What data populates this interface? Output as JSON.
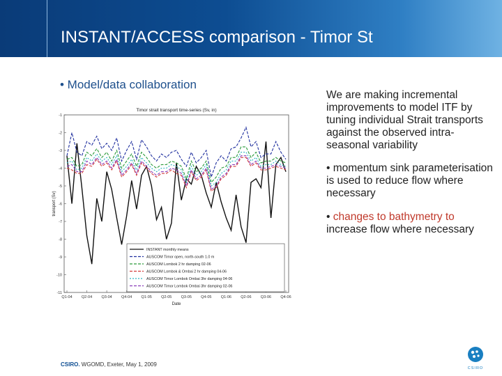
{
  "header": {
    "title": "INSTANT/ACCESS comparison - Timor St"
  },
  "main": {
    "bullet": "• Model/data collaboration",
    "paragraph1": "We are making incremental improvements to model ITF by tuning individual Strait transports against the observed intra-seasonal variability",
    "paragraph2": "• momentum sink parameterisation is used to reduce flow where necessary",
    "paragraph3_bullet": "• ",
    "paragraph3_accent": "changes to bathymetry to",
    "paragraph3_rest": "increase flow where necessary"
  },
  "footer": {
    "brand": "CSIRO.",
    "text": " WGOMD, Exeter, May 1, 2009"
  },
  "logo": {
    "icon": "csiro-logo-icon",
    "text": "CSIRO",
    "color": "#1a7fc1"
  },
  "chart_data": {
    "type": "line",
    "title": "Timor strait transport time-series (Sv, in)",
    "xlabel": "Date",
    "ylabel": "transport (Sv)",
    "ylim": [
      -11,
      -1
    ],
    "yticks": [
      -1,
      -2,
      -3,
      -4,
      -5,
      -6,
      -7,
      -8,
      -9,
      -10,
      -11
    ],
    "xticks": [
      "Q1-04",
      "Q2-04",
      "Q3-04",
      "Q4-04",
      "Q1-05",
      "Q2-05",
      "Q3-05",
      "Q4-05",
      "Q1-06",
      "Q2-06",
      "Q3-06",
      "Q4-06"
    ],
    "grid": false,
    "legend_placement": "bottom-right",
    "series": [
      {
        "name": "INSTANT monthly means",
        "color": "#111111",
        "dash": "",
        "values": [
          -3.3,
          -6.0,
          -2.6,
          -5.1,
          -7.8,
          -9.4,
          -5.7,
          -7.0,
          -4.2,
          -5.2,
          -6.8,
          -8.3,
          -6.7,
          -4.7,
          -6.3,
          -4.4,
          -3.9,
          -5.0,
          -6.9,
          -6.2,
          -8.0,
          -7.1,
          -3.7,
          -5.8,
          -4.6,
          -4.9,
          -3.9,
          -4.4,
          -5.4,
          -6.2,
          -4.8,
          -5.9,
          -6.8,
          -7.5,
          -5.5,
          -7.3,
          -8.2,
          -4.8,
          -4.6,
          -5.1,
          -2.5,
          -6.8,
          -3.8,
          -3.4,
          -4.2
        ]
      },
      {
        "name": "AUSCOM Timor open, north-south 1.0 m",
        "color": "#1f2f9e",
        "dash": "4,2",
        "values": [
          -3.3,
          -2.0,
          -3.1,
          -3.3,
          -2.5,
          -2.7,
          -2.2,
          -2.9,
          -2.6,
          -3.0,
          -2.3,
          -3.6,
          -3.0,
          -2.5,
          -3.5,
          -2.4,
          -2.8,
          -3.3,
          -3.6,
          -3.2,
          -3.4,
          -3.1,
          -3.0,
          -3.5,
          -3.9,
          -3.1,
          -3.7,
          -3.4,
          -3.0,
          -4.5,
          -3.7,
          -3.3,
          -3.6,
          -2.9,
          -2.8,
          -2.3,
          -1.7,
          -2.8,
          -2.5,
          -3.4,
          -3.2,
          -3.2,
          -2.5,
          -3.1,
          -3.5
        ]
      },
      {
        "name": "AUSCOM Lombok 2 hr damping 02-06",
        "color": "#2a9a3a",
        "dash": "4,2",
        "values": [
          -3.5,
          -3.4,
          -3.9,
          -3.8,
          -3.1,
          -3.3,
          -2.9,
          -3.4,
          -3.1,
          -3.6,
          -3.0,
          -4.0,
          -3.6,
          -3.2,
          -3.9,
          -3.1,
          -3.4,
          -3.8,
          -4.0,
          -3.8,
          -3.8,
          -3.6,
          -3.7,
          -3.9,
          -4.6,
          -3.6,
          -4.2,
          -4.0,
          -3.6,
          -4.8,
          -4.5,
          -4.0,
          -3.9,
          -3.4,
          -3.4,
          -2.8,
          -2.8,
          -3.4,
          -3.1,
          -3.7,
          -3.6,
          -3.6,
          -3.4,
          -3.6,
          -3.7
        ]
      },
      {
        "name": "AUSCOM Lombok & Ombai 2 hr damping 04-06",
        "color": "#d23a3a",
        "dash": "4,2",
        "values": [
          -4.0,
          -4.1,
          -4.3,
          -4.3,
          -3.8,
          -3.9,
          -3.5,
          -3.9,
          -3.7,
          -4.1,
          -3.6,
          -4.5,
          -4.2,
          -3.8,
          -4.4,
          -3.7,
          -4.0,
          -4.3,
          -4.5,
          -4.3,
          -4.3,
          -4.1,
          -4.3,
          -4.4,
          -5.1,
          -4.2,
          -4.7,
          -4.5,
          -4.1,
          -5.3,
          -5.1,
          -4.6,
          -4.4,
          -3.9,
          -3.9,
          -3.4,
          -3.4,
          -3.9,
          -3.7,
          -4.1,
          -4.1,
          -4.0,
          -3.9,
          -4.0,
          -4.1
        ]
      },
      {
        "name": "AUSCOM Timor Lombok Ombai 3hr damping 04-06",
        "color": "#2bb3c0",
        "dash": "2,2",
        "values": [
          -3.7,
          -3.6,
          -4.1,
          -4.0,
          -3.4,
          -3.6,
          -3.2,
          -3.6,
          -3.4,
          -3.8,
          -3.3,
          -4.2,
          -3.9,
          -3.5,
          -4.1,
          -3.4,
          -3.7,
          -4.0,
          -4.2,
          -4.0,
          -4.0,
          -3.8,
          -3.9,
          -4.1,
          -4.8,
          -3.9,
          -4.4,
          -4.2,
          -3.8,
          -5.0,
          -4.8,
          -4.3,
          -4.1,
          -3.6,
          -3.6,
          -3.1,
          -3.1,
          -3.6,
          -3.4,
          -3.9,
          -3.8,
          -3.8,
          -3.6,
          -3.8,
          -3.9
        ]
      },
      {
        "name": "AUSCOM Timor Lombok Ombai 3hr damping 02-06",
        "color": "#8a3cb8",
        "dash": "4,2",
        "values": [
          -3.9,
          -3.8,
          -4.2,
          -4.2,
          -3.6,
          -3.8,
          -3.4,
          -3.8,
          -3.6,
          -4.0,
          -3.5,
          -4.4,
          -4.1,
          -3.7,
          -4.3,
          -3.6,
          -3.9,
          -4.2,
          -4.4,
          -4.2,
          -4.2,
          -4.0,
          -4.1,
          -4.3,
          -5.0,
          -4.1,
          -4.6,
          -4.4,
          -4.0,
          -5.2,
          -5.0,
          -4.5,
          -4.3,
          -3.8,
          -3.8,
          -3.3,
          -3.3,
          -3.8,
          -3.6,
          -4.0,
          -4.0,
          -3.9,
          -3.8,
          -3.9,
          -4.0
        ]
      }
    ]
  }
}
